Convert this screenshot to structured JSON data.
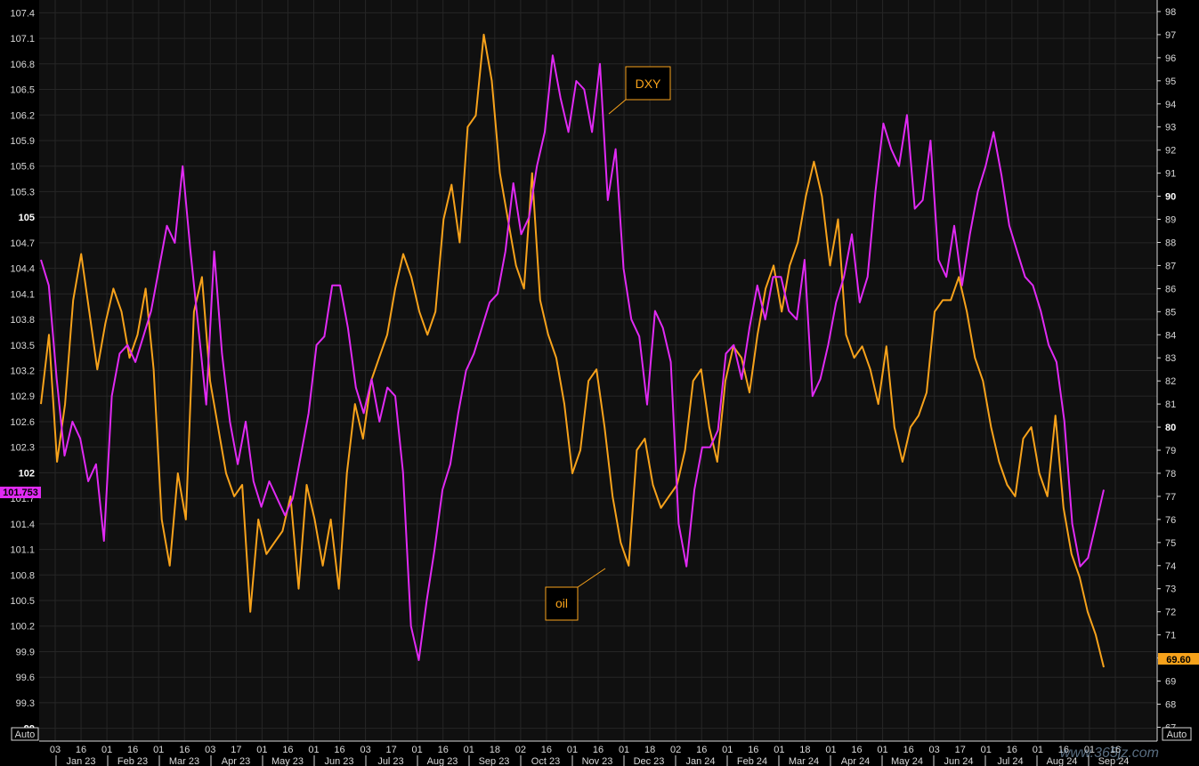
{
  "colors": {
    "dxy": "#e02af3",
    "oil": "#f7a21b",
    "grid": "#262626",
    "plot_bg": "#101010"
  },
  "axis_auto_left": "Auto",
  "axis_auto_right": "Auto",
  "chart_data": {
    "type": "line",
    "title": "",
    "grid": true,
    "x_day_ticks": [
      "03",
      "16",
      "01",
      "16",
      "01",
      "16",
      "03",
      "17",
      "01",
      "16",
      "01",
      "16",
      "03",
      "17",
      "01",
      "16",
      "01",
      "18",
      "02",
      "16",
      "01",
      "16",
      "01",
      "18",
      "02",
      "16",
      "01",
      "16",
      "01",
      "18",
      "01",
      "16",
      "01",
      "16",
      "03",
      "17",
      "01",
      "16",
      "01",
      "16",
      "01",
      "16"
    ],
    "x_month_labels": [
      "Jan 23",
      "Feb 23",
      "Mar 23",
      "Apr 23",
      "May 23",
      "Jun 23",
      "Jul 23",
      "Aug 23",
      "Sep 23",
      "Oct 23",
      "Nov 23",
      "Dec 23",
      "Jan 24",
      "Feb 24",
      "Mar 24",
      "Apr 24",
      "May 24",
      "Jun 24",
      "Jul 24",
      "Aug 24",
      "Sep 24"
    ],
    "left_axis": {
      "series": "DXY",
      "ylim": [
        98.85,
        107.55
      ],
      "ticks": [
        "107.4",
        "107.1",
        "106.8",
        "106.5",
        "106.2",
        "105.9",
        "105.6",
        "105.3",
        "105",
        "104.7",
        "104.4",
        "104.1",
        "103.8",
        "103.5",
        "103.2",
        "102.9",
        "102.6",
        "102.3",
        "102",
        "101.7",
        "101.4",
        "101.1",
        "100.8",
        "100.5",
        "100.2",
        "99.9",
        "99.6",
        "99.3",
        "99"
      ],
      "bold_ticks": [
        "105",
        "102",
        "99"
      ]
    },
    "right_axis": {
      "series": "oil",
      "ylim": [
        66.4,
        98.5
      ],
      "ticks": [
        "98",
        "97",
        "96",
        "95",
        "94",
        "93",
        "92",
        "91",
        "90",
        "89",
        "88",
        "87",
        "86",
        "85",
        "84",
        "83",
        "82",
        "81",
        "80",
        "79",
        "78",
        "77",
        "76",
        "75",
        "74",
        "73",
        "72",
        "71",
        "70",
        "69",
        "68",
        "67"
      ],
      "bold_ticks": [
        "90",
        "80",
        "70"
      ]
    },
    "series": [
      {
        "name": "DXY",
        "axis": "left",
        "last_value_label": "101.753",
        "last_value": 101.753,
        "values": [
          104.5,
          104.2,
          103.1,
          102.2,
          102.6,
          102.4,
          101.9,
          102.1,
          101.2,
          102.9,
          103.4,
          103.5,
          103.3,
          103.6,
          103.9,
          104.4,
          104.9,
          104.7,
          105.6,
          104.6,
          103.7,
          102.8,
          104.6,
          103.4,
          102.6,
          102.1,
          102.6,
          101.9,
          101.6,
          101.9,
          101.7,
          101.5,
          101.7,
          102.2,
          102.7,
          103.5,
          103.6,
          104.2,
          104.2,
          103.7,
          103.0,
          102.7,
          103.1,
          102.6,
          103.0,
          102.9,
          102.0,
          100.2,
          99.8,
          100.5,
          101.1,
          101.8,
          102.1,
          102.7,
          103.2,
          103.4,
          103.7,
          104.0,
          104.1,
          104.6,
          105.4,
          104.8,
          105.0,
          105.6,
          106.0,
          106.9,
          106.4,
          106.0,
          106.6,
          106.5,
          106.0,
          106.8,
          105.2,
          105.8,
          104.4,
          103.8,
          103.6,
          102.8,
          103.9,
          103.7,
          103.3,
          101.4,
          100.9,
          101.8,
          102.3,
          102.3,
          102.5,
          103.4,
          103.5,
          103.1,
          103.7,
          104.2,
          103.8,
          104.3,
          104.3,
          103.9,
          103.8,
          104.5,
          102.9,
          103.1,
          103.5,
          104.0,
          104.3,
          104.8,
          104.0,
          104.3,
          105.3,
          106.1,
          105.8,
          105.6,
          106.2,
          105.1,
          105.2,
          105.9,
          104.5,
          104.3,
          104.9,
          104.2,
          104.8,
          105.3,
          105.6,
          106.0,
          105.5,
          104.9,
          104.6,
          104.3,
          104.2,
          103.9,
          103.5,
          103.3,
          102.6,
          101.4,
          100.9,
          101.0,
          101.4,
          101.8
        ]
      },
      {
        "name": "oil",
        "axis": "right",
        "last_value_label": "69.60",
        "last_value": 69.6,
        "values": [
          81.0,
          84.0,
          78.5,
          81.0,
          85.5,
          87.5,
          85.0,
          82.5,
          84.5,
          86.0,
          85.0,
          83.0,
          84.0,
          86.0,
          82.5,
          76.0,
          74.0,
          78.0,
          76.0,
          85.0,
          86.5,
          82.0,
          80.0,
          78.0,
          77.0,
          77.5,
          72.0,
          76.0,
          74.5,
          75.0,
          75.5,
          77.0,
          73.0,
          77.5,
          76.0,
          74.0,
          76.0,
          73.0,
          78.0,
          81.0,
          79.5,
          82.0,
          83.0,
          84.0,
          86.0,
          87.5,
          86.5,
          85.0,
          84.0,
          85.0,
          89.0,
          90.5,
          88.0,
          93.0,
          93.5,
          97.0,
          95.0,
          91.0,
          89.0,
          87.0,
          86.0,
          91.0,
          85.5,
          84.0,
          83.0,
          81.0,
          78.0,
          79.0,
          82.0,
          82.5,
          80.0,
          77.0,
          75.0,
          74.0,
          79.0,
          79.5,
          77.5,
          76.5,
          77.0,
          77.5,
          79.0,
          82.0,
          82.5,
          80.0,
          78.5,
          82.0,
          83.5,
          83.0,
          81.5,
          84.0,
          86.0,
          87.0,
          85.0,
          87.0,
          88.0,
          90.0,
          91.5,
          90.0,
          87.0,
          89.0,
          84.0,
          83.0,
          83.5,
          82.5,
          81.0,
          83.5,
          80.0,
          78.5,
          80.0,
          80.5,
          81.5,
          85.0,
          85.5,
          85.5,
          86.5,
          85.0,
          83.0,
          82.0,
          80.0,
          78.5,
          77.5,
          77.0,
          79.5,
          80.0,
          78.0,
          77.0,
          80.5,
          76.5,
          74.5,
          73.5,
          72.0,
          71.0,
          69.6
        ]
      }
    ],
    "annotations": [
      {
        "label": "DXY",
        "series": "DXY"
      },
      {
        "label": "oil",
        "series": "oil"
      }
    ],
    "watermark": "www.365jz.com"
  }
}
